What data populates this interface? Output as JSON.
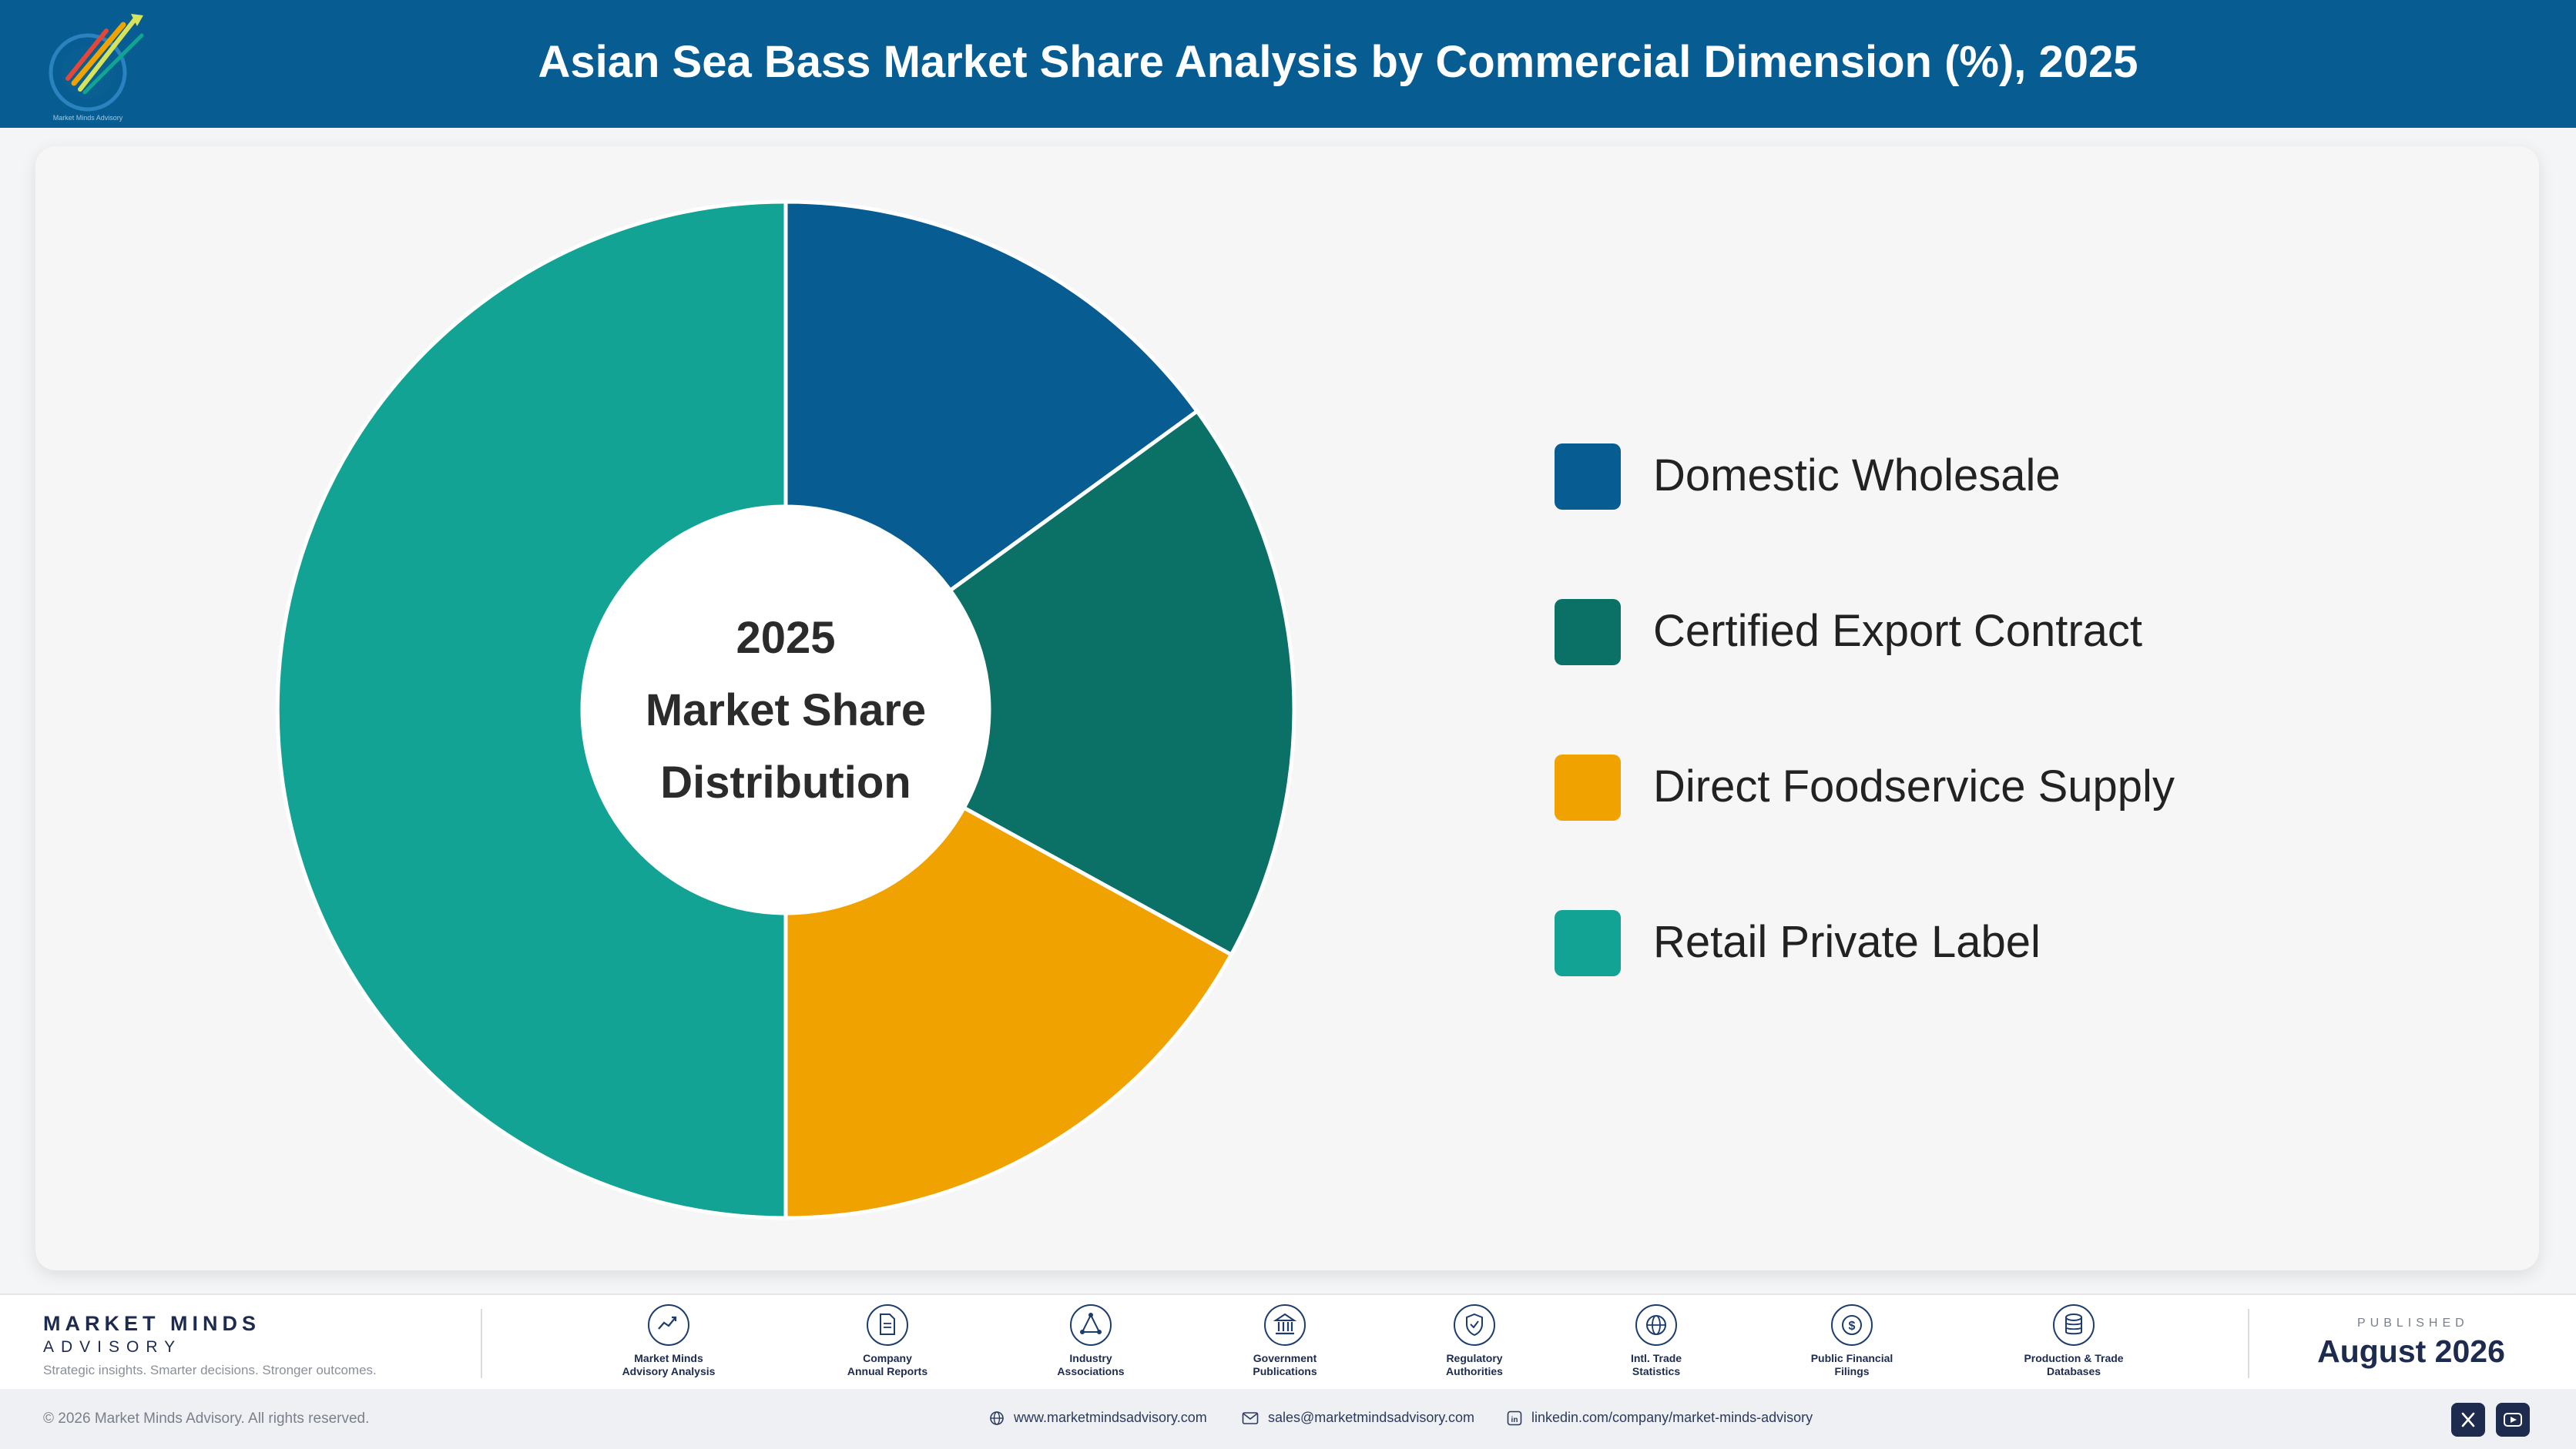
{
  "header": {
    "title": "Asian Sea Bass Market Share Analysis by Commercial Dimension (%), 2025",
    "logo_caption": "Market Minds Advisory",
    "background_color": "#075d91"
  },
  "chart_data": {
    "type": "pie",
    "style": "donut",
    "center_label_lines": [
      "2025",
      "Market Share",
      "Distribution"
    ],
    "categories": [
      "Domestic Wholesale",
      "Certified Export Contract",
      "Direct Foodservice Supply",
      "Retail Private Label"
    ],
    "values": [
      15,
      18,
      17,
      50
    ],
    "colors": [
      "#075d91",
      "#0b7066",
      "#f0a200",
      "#13a394"
    ],
    "legend_position": "right",
    "start_angle_deg": 0,
    "direction": "clockwise"
  },
  "footer": {
    "brand_name": "MARKET MINDS",
    "brand_sub": "ADVISORY",
    "brand_tagline": "Strategic insights. Smarter decisions. Stronger outcomes.",
    "sources": [
      {
        "icon": "trend-chart-icon",
        "line1": "Market Minds",
        "line2": "Advisory Analysis"
      },
      {
        "icon": "document-icon",
        "line1": "Company",
        "line2": "Annual Reports"
      },
      {
        "icon": "network-icon",
        "line1": "Industry",
        "line2": "Associations"
      },
      {
        "icon": "government-building-icon",
        "line1": "Government",
        "line2": "Publications"
      },
      {
        "icon": "shield-check-icon",
        "line1": "Regulatory",
        "line2": "Authorities"
      },
      {
        "icon": "globe-icon",
        "line1": "Intl. Trade",
        "line2": "Statistics"
      },
      {
        "icon": "dollar-coin-icon",
        "line1": "Public Financial",
        "line2": "Filings"
      },
      {
        "icon": "database-icon",
        "line1": "Production & Trade",
        "line2": "Databases"
      }
    ],
    "published_label": "PUBLISHED",
    "published_date": "August 2026"
  },
  "bottom_bar": {
    "copyright": "© 2026 Market Minds Advisory. All rights reserved.",
    "website": "www.marketmindsadvisory.com",
    "email": "sales@marketmindsadvisory.com",
    "linkedin": "linkedin.com/company/market-minds-advisory",
    "social": [
      "x-icon",
      "youtube-icon"
    ]
  }
}
